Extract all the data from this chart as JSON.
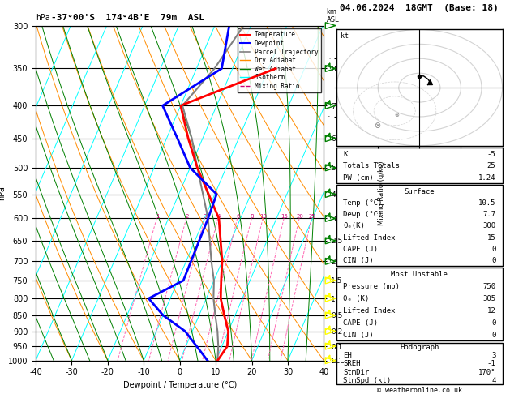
{
  "title_left": "-37°00'S  174°4B'E  79m  ASL",
  "title_right": "04.06.2024  18GMT  (Base: 18)",
  "xlabel": "Dewpoint / Temperature (°C)",
  "ylabel_left": "hPa",
  "pressure_levels": [
    300,
    350,
    400,
    450,
    500,
    550,
    600,
    650,
    700,
    750,
    800,
    850,
    900,
    950,
    1000
  ],
  "x_min": -40,
  "x_max": 40,
  "p_min": 300,
  "p_max": 1000,
  "temp_profile": {
    "pressure": [
      1000,
      950,
      900,
      850,
      800,
      750,
      700,
      600,
      500,
      450,
      400,
      350
    ],
    "temperature": [
      10.5,
      11.5,
      10.0,
      7.0,
      4.0,
      2.0,
      0.0,
      -6.0,
      -18.0,
      -24.0,
      -30.0,
      -8.0
    ]
  },
  "dewp_profile": {
    "pressure": [
      1000,
      950,
      900,
      850,
      800,
      750,
      600,
      550,
      500,
      450,
      400,
      350,
      300
    ],
    "dewpoint": [
      7.7,
      3.0,
      -2.0,
      -10.0,
      -16.0,
      -8.5,
      -9.0,
      -9.5,
      -20.0,
      -27.0,
      -35.0,
      -23.0,
      -26.0
    ]
  },
  "parcel_profile": {
    "pressure": [
      1000,
      950,
      900,
      850,
      800,
      750,
      700,
      600,
      500,
      450,
      400,
      350,
      300
    ],
    "temperature": [
      10.5,
      9.0,
      7.0,
      4.5,
      2.0,
      0.0,
      -3.0,
      -9.0,
      -18.0,
      -23.0,
      -29.5,
      -25.0,
      -22.0
    ]
  },
  "mixing_ratio_lines": [
    1,
    2,
    3,
    4,
    6,
    8,
    10,
    15,
    20,
    25
  ],
  "km_ticks": {
    "pressures": [
      350,
      400,
      450,
      500,
      550,
      600,
      650,
      700,
      750,
      800,
      850,
      900,
      950,
      1000
    ],
    "km_labels": [
      "8",
      "7",
      "6",
      "5",
      "4",
      "3",
      "2.5",
      "2",
      "1.5",
      "1",
      "0.5",
      "0.2",
      "0.1",
      "LCL"
    ]
  },
  "surface": {
    "Temp_label": "Temp (°C)",
    "Temp": 10.5,
    "Dewp_label": "Dewp (°C)",
    "Dewp": 7.7,
    "theta_e_label": "θₑ(K)",
    "theta_e": 300,
    "LI_label": "Lifted Index",
    "LI": 15,
    "CAPE_label": "CAPE (J)",
    "CAPE": 0,
    "CIN_label": "CIN (J)",
    "CIN": 0
  },
  "most_unstable": {
    "P_label": "Pressure (mb)",
    "P": 750,
    "theta_e_label": "θₑ (K)",
    "theta_e": 305,
    "LI_label": "Lifted Index",
    "LI": 12,
    "CAPE_label": "CAPE (J)",
    "CAPE": 0,
    "CIN_label": "CIN (J)",
    "CIN": 0
  },
  "hodograph": {
    "EH_label": "EH",
    "EH": 3,
    "SREH_label": "SREH",
    "SREH": -1,
    "StmDir_label": "StmDir",
    "StmDir": "170°",
    "StmSpd_label": "StmSpd (kt)",
    "StmSpd": 4
  },
  "indices": {
    "K_label": "K",
    "K": -5,
    "TT_label": "Totals Totals",
    "TT": 25,
    "PW_label": "PW (cm)",
    "PW": 1.24
  },
  "wind_barb_pressures": [
    300,
    350,
    400,
    450,
    500,
    550,
    600,
    650,
    700,
    750,
    800,
    850,
    900,
    950,
    1000
  ],
  "wind_barb_colors": [
    "green",
    "green",
    "green",
    "green",
    "green",
    "green",
    "green",
    "green",
    "green",
    "yellow",
    "yellow",
    "yellow",
    "yellow",
    "yellow",
    "yellow"
  ]
}
